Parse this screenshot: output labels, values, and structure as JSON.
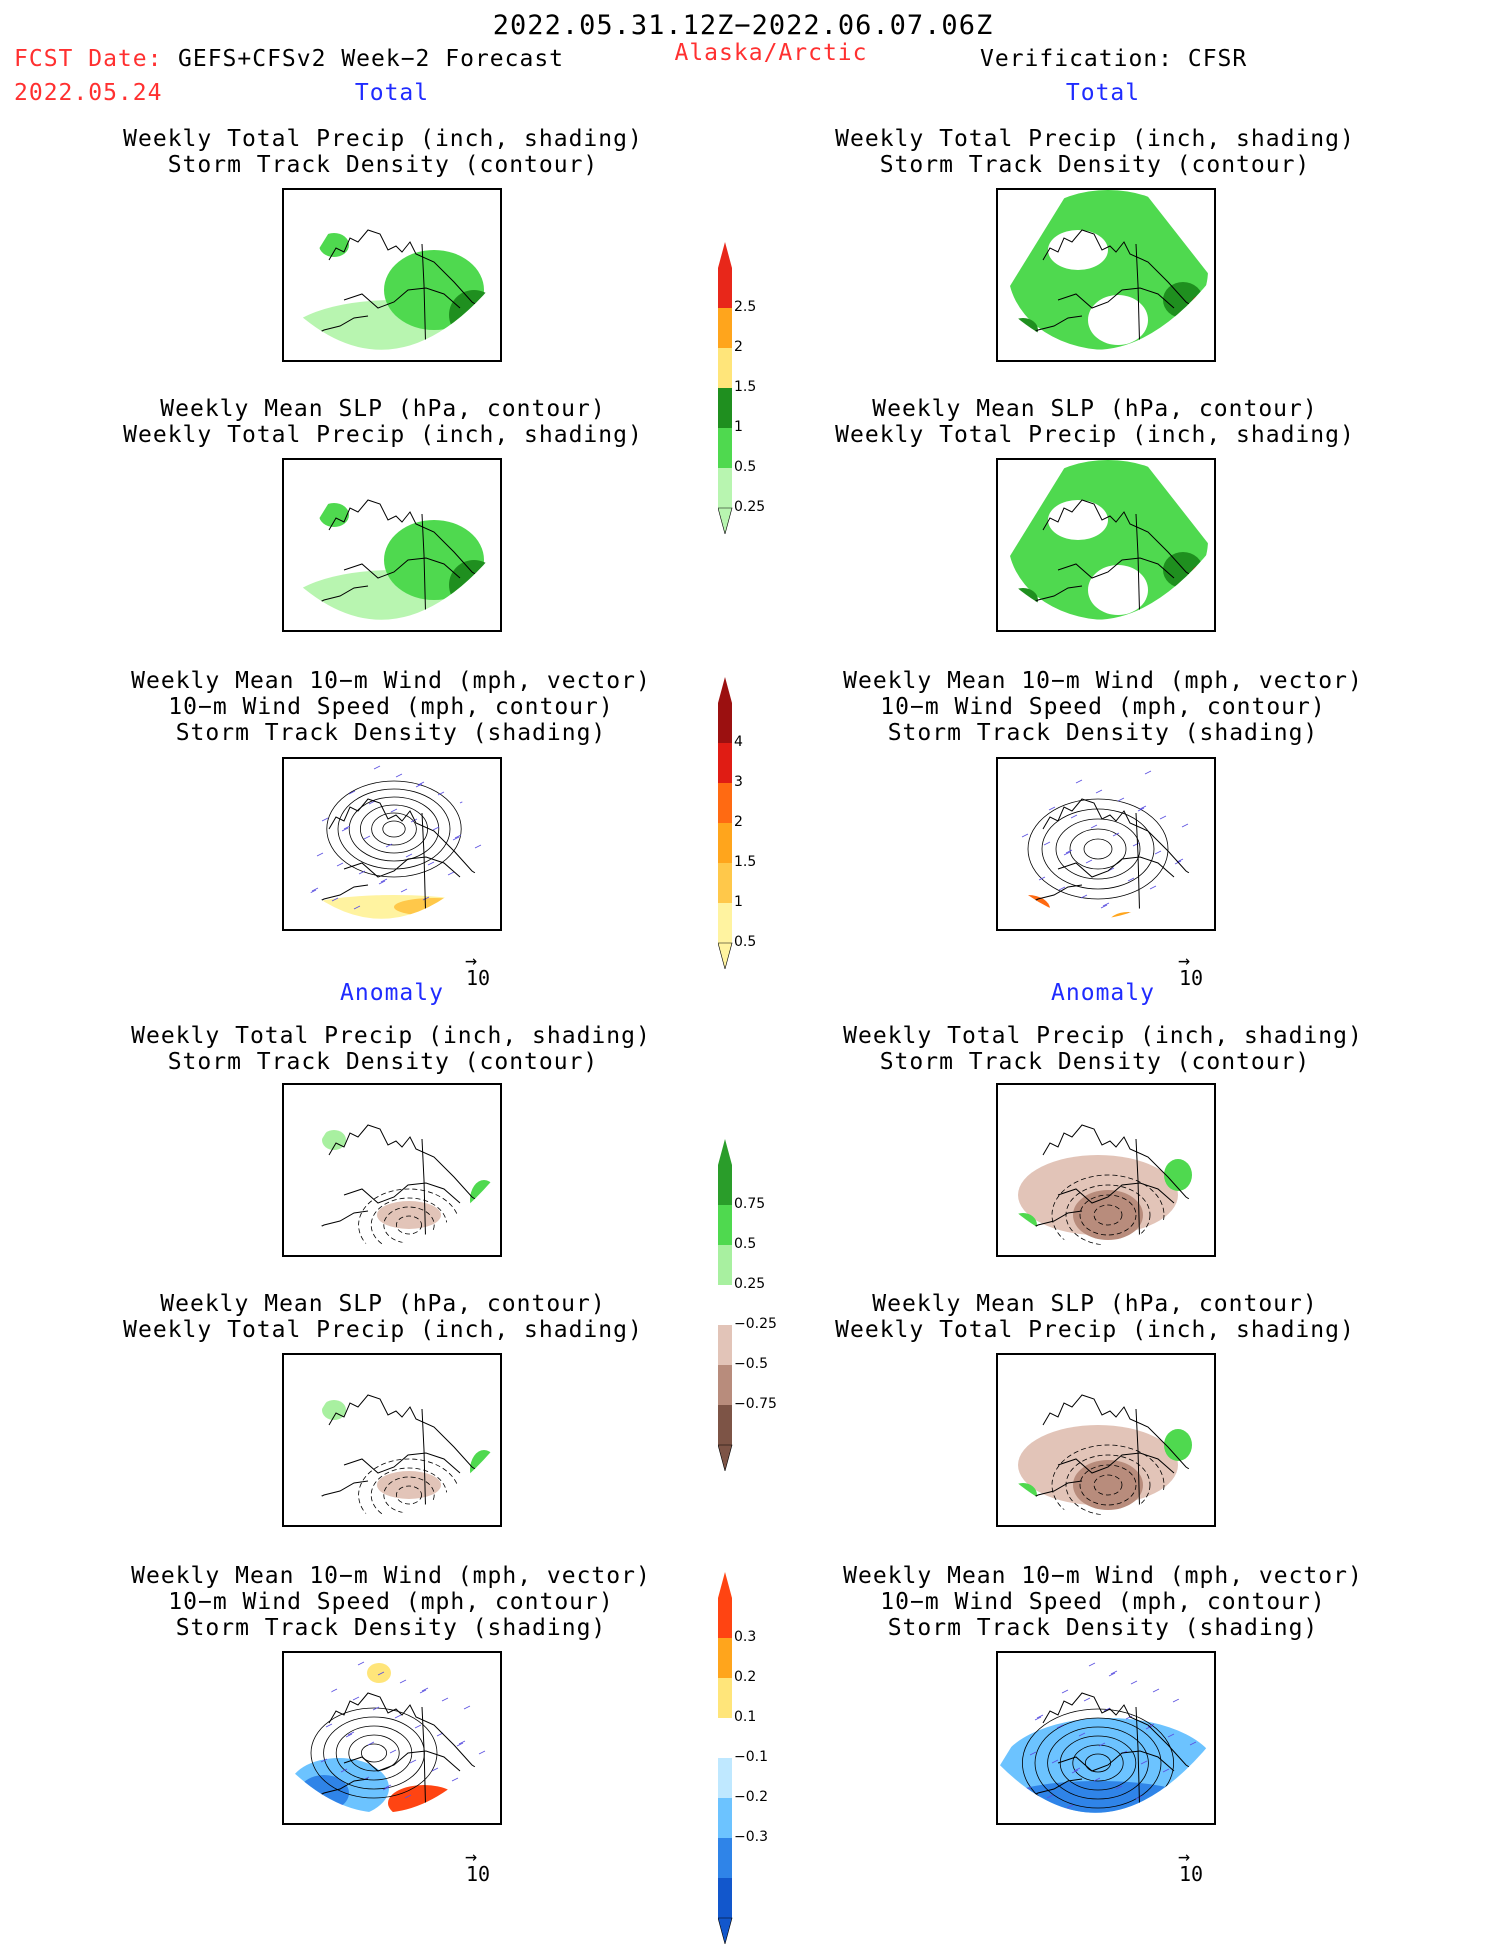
{
  "header": {
    "period": "2022.05.31.12Z−2022.06.07.06Z",
    "fcst_prefix": "FCST Date:",
    "model": "GEFS+CFSv2 Week−2 Forecast",
    "fcst_date": "2022.05.24",
    "region": "Alaska/Arctic",
    "verification": "Verification: CFSR"
  },
  "sections": {
    "total": "Total",
    "anomaly": "Anomaly"
  },
  "titles": {
    "precip_storm": [
      "Weekly Total Precip (inch, shading)",
      "Storm Track Density (contour)"
    ],
    "slp_precip": [
      "Weekly Mean SLP (hPa, contour)",
      "Weekly Total Precip (inch, shading)"
    ],
    "wind_storm": [
      "Weekly Mean 10−m Wind (mph, vector)",
      "10−m Wind Speed (mph, contour)",
      "Storm Track Density (shading)"
    ]
  },
  "vector_ref": {
    "value": "10",
    "arrow": "→"
  },
  "colorbars": {
    "precip_total": {
      "labels": [
        "2.5",
        "2",
        "1.5",
        "1",
        "0.5",
        "0.25"
      ],
      "colors": [
        "#e8271a",
        "#ffa51c",
        "#ffe57a",
        "#1f8f1f",
        "#4fd94f",
        "#b8f5b0"
      ]
    },
    "storm_total": {
      "labels": [
        "4",
        "3",
        "2",
        "1.5",
        "1",
        "0.5"
      ],
      "colors": [
        "#9b1010",
        "#e01c14",
        "#ff6a12",
        "#ffa51c",
        "#ffc84a",
        "#fff3a0"
      ]
    },
    "precip_anom": {
      "labels": [
        "0.75",
        "0.5",
        "0.25",
        "−0.25",
        "−0.5",
        "−0.75"
      ],
      "colors": [
        "#2a9d2a",
        "#4fd94f",
        "#a8f0a0",
        "#ffffff",
        "#e2c4b8",
        "#b88c7c",
        "#7d5446"
      ]
    },
    "storm_anom": {
      "labels": [
        "0.3",
        "0.2",
        "0.1",
        "−0.1",
        "−0.2",
        "−0.3"
      ],
      "colors": [
        "#ff4412",
        "#ffa51c",
        "#ffe57a",
        "#ffffff",
        "#bfe8ff",
        "#6cc3ff",
        "#2f84e8",
        "#1257cc"
      ]
    }
  }
}
